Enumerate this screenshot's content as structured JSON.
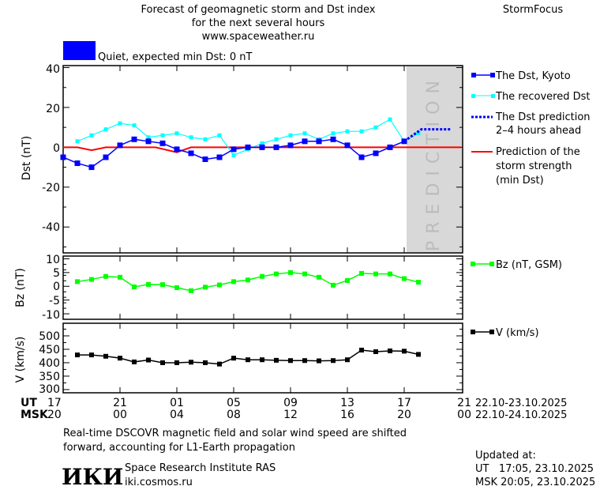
{
  "header": {
    "title_lines": [
      "Forecast of geomagnetic storm and Dst index",
      "for the next several hours",
      "www.spaceweather.ru"
    ],
    "brand": "StormFocus",
    "status_text": "Quiet, expected min Dst: 0 nT",
    "status_color": "#0000ff"
  },
  "prediction_band_label": "PREDICTION",
  "time_axis": {
    "ut_label": "UT",
    "msk_label": "MSK",
    "ut_ticks": [
      "17",
      "21",
      "01",
      "05",
      "09",
      "13",
      "17",
      "21"
    ],
    "msk_ticks": [
      "20",
      "00",
      "04",
      "08",
      "12",
      "16",
      "20",
      "00"
    ],
    "ut_dates": "22.10-23.10.2025",
    "msk_dates": "22.10-24.10.2025"
  },
  "chart_data": [
    {
      "type": "line",
      "ylabel": "Dst (nT)",
      "ylim": [
        -53,
        41
      ],
      "yticks": [
        "40",
        "20",
        "0",
        "-20",
        "-40"
      ],
      "x_unit_note": "hours from 17 UT 22.10.2025",
      "series": [
        {
          "name": "The Dst, Kyoto",
          "color": "#0000ff",
          "x": [
            0,
            1,
            2,
            3,
            4,
            5,
            6,
            7,
            8,
            9,
            10,
            11,
            12,
            13,
            14,
            15,
            16,
            17,
            18,
            19,
            20,
            21,
            22,
            23,
            24
          ],
          "values": [
            -5,
            -8,
            -10,
            -5,
            1,
            4,
            3,
            2,
            -1,
            -3,
            -6,
            -5,
            -1,
            0,
            0,
            0,
            1,
            3,
            3,
            4,
            1,
            -5,
            -3,
            0,
            3
          ]
        },
        {
          "name": "The recovered Dst",
          "color": "#00ffff",
          "x": [
            1,
            2,
            3,
            4,
            5,
            6,
            7,
            8,
            9,
            10,
            11,
            12,
            13,
            14,
            15,
            16,
            17,
            18,
            19,
            20,
            21,
            22,
            23,
            24,
            25
          ],
          "values": [
            3,
            6,
            9,
            12,
            11,
            5,
            6,
            7,
            5,
            4,
            6,
            -4,
            -1,
            2,
            4,
            6,
            7,
            4,
            7,
            8,
            8,
            10,
            14,
            3,
            7
          ]
        },
        {
          "name": "The Dst prediction 2-4 hours ahead",
          "color": "#0000ff",
          "x": [
            24,
            25.2,
            27.3
          ],
          "values": [
            3,
            9,
            9
          ]
        },
        {
          "name": "Prediction of the storm strength (min Dst)",
          "color": "#ff0000",
          "x": [
            0,
            1,
            2,
            3,
            6.5,
            8,
            9,
            28
          ],
          "values": [
            0,
            0,
            -1.5,
            0,
            0,
            -2.5,
            0,
            0
          ]
        }
      ]
    },
    {
      "type": "line",
      "ylabel": "Bz (nT)",
      "ylim": [
        -12,
        11
      ],
      "yticks": [
        "10",
        "5",
        "0",
        "-5",
        "-10"
      ],
      "series": [
        {
          "name": "Bz (nT, GSM)",
          "color": "#00ff00",
          "x": [
            1,
            2,
            3,
            4,
            5,
            6,
            7,
            8,
            9,
            10,
            11,
            12,
            13,
            14,
            15,
            16,
            17,
            18,
            19,
            20,
            21,
            22,
            23,
            24,
            25
          ],
          "values": [
            1.7,
            2.5,
            3.6,
            3.3,
            -0.2,
            0.7,
            0.6,
            -0.5,
            -1.6,
            -0.3,
            0.5,
            1.7,
            2.3,
            3.6,
            4.5,
            5.0,
            4.5,
            3.3,
            0.4,
            2.1,
            4.7,
            4.5,
            4.5,
            2.8,
            1.5
          ]
        }
      ]
    },
    {
      "type": "line",
      "ylabel": "V (km/s)",
      "ylim": [
        288,
        547
      ],
      "yticks": [
        "500",
        "450",
        "400",
        "350",
        "300"
      ],
      "series": [
        {
          "name": "V (km/s)",
          "color": "#000000",
          "x": [
            1,
            2,
            3,
            4,
            5,
            6,
            7,
            8,
            9,
            10,
            11,
            12,
            13,
            14,
            15,
            16,
            17,
            18,
            19,
            20,
            21,
            22,
            23,
            24,
            25
          ],
          "values": [
            429,
            429,
            424,
            417,
            403,
            410,
            400,
            400,
            402,
            400,
            395,
            417,
            411,
            411,
            409,
            408,
            408,
            407,
            408,
            411,
            447,
            441,
            444,
            443,
            431
          ]
        }
      ]
    }
  ],
  "footer": {
    "note_lines": [
      "Real-time DSCOVR magnetic field and solar wind speed are shifted",
      "forward, accounting for L1-Earth propagation"
    ],
    "institute_logo": "ИКИ",
    "institute_name": "Space Research Institute RAS",
    "institute_url": "iki.cosmos.ru",
    "updated_label": "Updated at:",
    "updated_ut": "UT   17:05, 23.10.2025",
    "updated_msk": "MSK 20:05, 23.10.2025"
  }
}
